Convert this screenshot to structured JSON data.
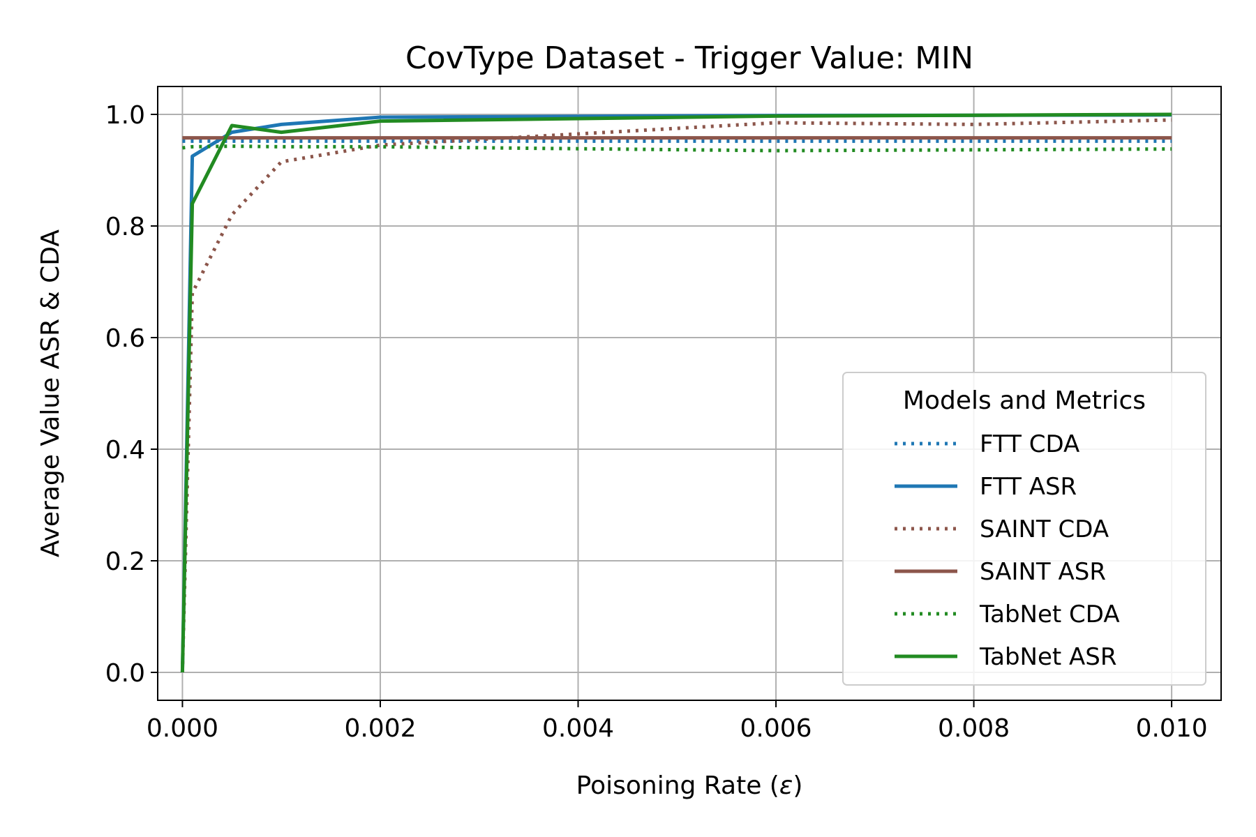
{
  "chart_data": {
    "type": "line",
    "title": "CovType Dataset - Trigger Value: MIN",
    "xlabel_prefix": "Poisoning Rate (",
    "xlabel_symbol": "ε",
    "xlabel_suffix": ")",
    "ylabel": "Average Value ASR & CDA",
    "xlim": [
      -0.00025,
      0.0105
    ],
    "ylim": [
      -0.05,
      1.05
    ],
    "xticks": [
      0.0,
      0.002,
      0.004,
      0.006,
      0.008,
      0.01
    ],
    "xtick_labels": [
      "0.000",
      "0.002",
      "0.004",
      "0.006",
      "0.008",
      "0.010"
    ],
    "yticks": [
      0.0,
      0.2,
      0.4,
      0.6,
      0.8,
      1.0
    ],
    "ytick_labels": [
      "0.0",
      "0.2",
      "0.4",
      "0.6",
      "0.8",
      "1.0"
    ],
    "grid": true,
    "legend": {
      "title": "Models and Metrics",
      "placement": "lower-right"
    },
    "series": [
      {
        "name": "FTT CDA",
        "style": "dotted",
        "color": "#1f77b4",
        "points": [
          [
            0.0,
            0.952
          ],
          [
            0.0001,
            0.952
          ],
          [
            0.0005,
            0.952
          ],
          [
            0.001,
            0.952
          ],
          [
            0.002,
            0.952
          ],
          [
            0.006,
            0.952
          ],
          [
            0.01,
            0.952
          ]
        ]
      },
      {
        "name": "FTT ASR",
        "style": "solid",
        "color": "#1f77b4",
        "points": [
          [
            0.0,
            0.0
          ],
          [
            0.0001,
            0.925
          ],
          [
            0.0005,
            0.968
          ],
          [
            0.001,
            0.982
          ],
          [
            0.002,
            0.995
          ],
          [
            0.006,
            0.998
          ],
          [
            0.01,
            0.999
          ]
        ]
      },
      {
        "name": "SAINT CDA",
        "style": "dotted",
        "color": "#8c564b",
        "points": [
          [
            0.0,
            0.0
          ],
          [
            0.0001,
            0.68
          ],
          [
            0.0005,
            0.82
          ],
          [
            0.001,
            0.915
          ],
          [
            0.002,
            0.945
          ],
          [
            0.006,
            0.985
          ],
          [
            0.008,
            0.982
          ],
          [
            0.01,
            0.99
          ]
        ]
      },
      {
        "name": "SAINT ASR",
        "style": "solid",
        "color": "#8c564b",
        "points": [
          [
            0.0,
            0.958
          ],
          [
            0.0001,
            0.958
          ],
          [
            0.0005,
            0.958
          ],
          [
            0.001,
            0.958
          ],
          [
            0.002,
            0.958
          ],
          [
            0.006,
            0.958
          ],
          [
            0.01,
            0.958
          ]
        ]
      },
      {
        "name": "TabNet CDA",
        "style": "dotted",
        "color": "#228b22",
        "points": [
          [
            0.0,
            0.94
          ],
          [
            0.0001,
            0.942
          ],
          [
            0.0005,
            0.943
          ],
          [
            0.001,
            0.942
          ],
          [
            0.002,
            0.942
          ],
          [
            0.006,
            0.935
          ],
          [
            0.01,
            0.938
          ]
        ]
      },
      {
        "name": "TabNet ASR",
        "style": "solid",
        "color": "#228b22",
        "points": [
          [
            0.0,
            0.0
          ],
          [
            0.0001,
            0.84
          ],
          [
            0.0005,
            0.98
          ],
          [
            0.001,
            0.968
          ],
          [
            0.002,
            0.988
          ],
          [
            0.006,
            0.997
          ],
          [
            0.01,
            1.0
          ]
        ]
      }
    ]
  }
}
